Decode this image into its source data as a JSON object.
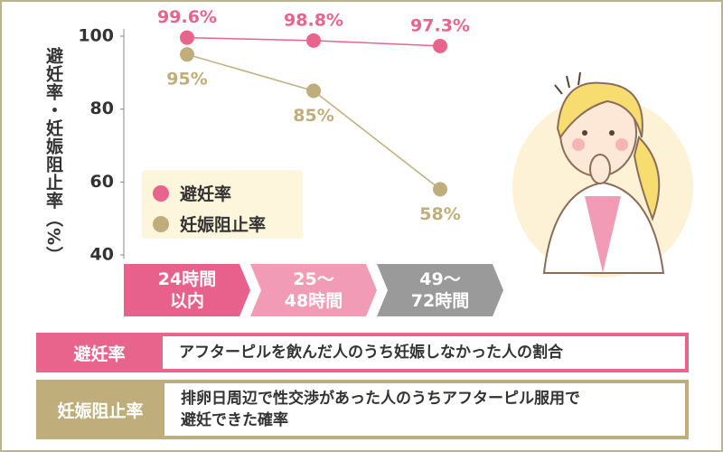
{
  "chart_data": {
    "type": "line",
    "y_label": "避妊率・妊娠阻止率（%）",
    "categories": [
      "24時間\n以内",
      "25〜\n48時間",
      "49〜\n72時間"
    ],
    "category_colors": [
      "#e8618c",
      "#f29bb6",
      "#9a9a9a"
    ],
    "series": [
      {
        "name": "避妊率",
        "color": "#e8648c",
        "values": [
          99.6,
          98.8,
          97.3
        ],
        "value_labels": [
          "99.6%",
          "98.8%",
          "97.3%"
        ]
      },
      {
        "name": "妊娠阻止率",
        "color": "#bfae7c",
        "values": [
          95,
          85,
          58
        ],
        "value_labels": [
          "95%",
          "85%",
          "58%"
        ]
      }
    ],
    "ylim": [
      40,
      100
    ],
    "yticks": [
      40,
      60,
      80,
      100
    ]
  },
  "definitions": [
    {
      "term": "避妊率",
      "color": "#e8648c",
      "description": "アフターピルを飲んだ人のうち妊娠しなかった人の割合"
    },
    {
      "term": "妊娠阻止率",
      "color": "#bfae7c",
      "description": "排卵日周辺で性交渉があった人のうちアフターピル服用で\n避妊できた確率"
    }
  ]
}
